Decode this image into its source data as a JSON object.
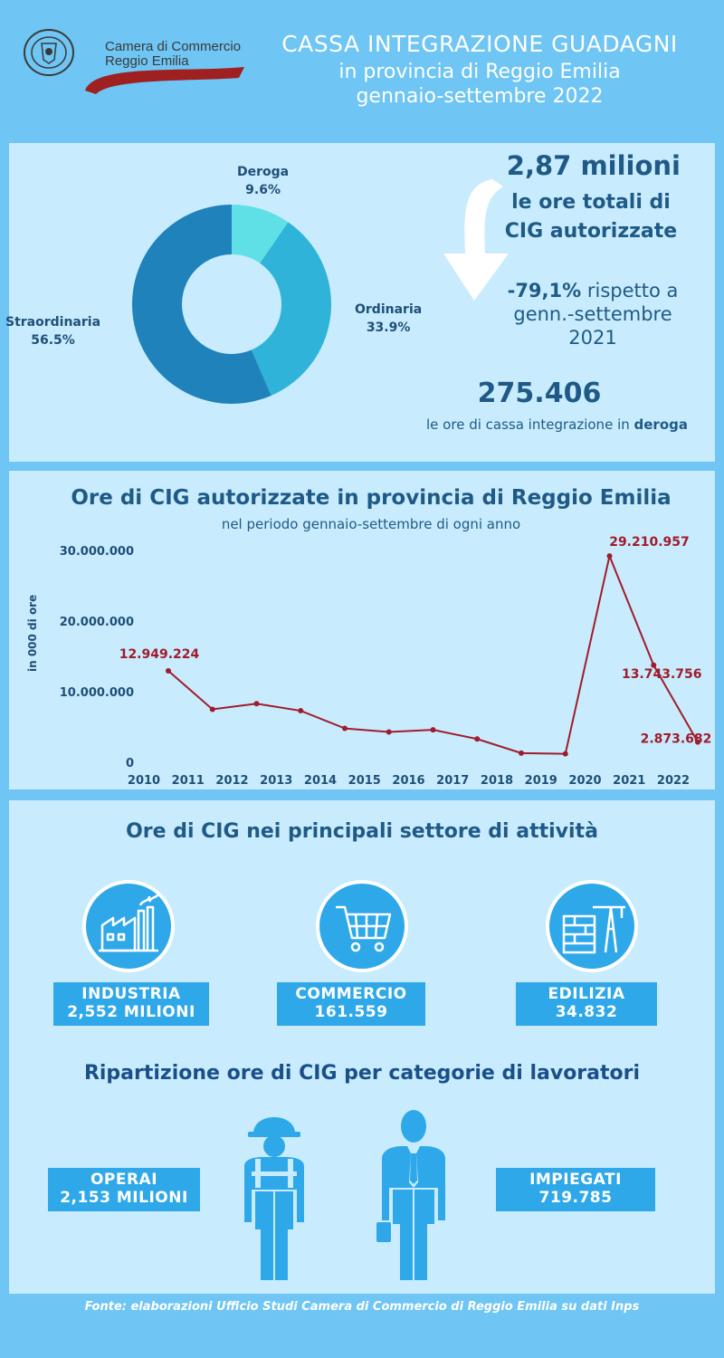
{
  "header": {
    "logo_text_line1": "Camera di Commercio",
    "logo_text_line2": "Reggio Emilia",
    "title_line1": "CASSA INTEGRAZIONE  GUADAGNI",
    "title_line2": "in provincia di Reggio Emilia",
    "title_line3": "gennaio-settembre 2022"
  },
  "summary": {
    "total_value": "2,87 milioni",
    "total_caption_line1": "le ore totali di",
    "total_caption_line2": "CIG autorizzate",
    "variation_value": "-79,1%",
    "variation_text_1": " rispetto a",
    "variation_text_2": "genn.-settembre",
    "variation_text_3": "2021",
    "deroga_value": "275.406",
    "deroga_caption": "le ore di cassa integrazione in ",
    "deroga_caption_bold": "deroga"
  },
  "donut_labels": {
    "deroga_name": "Deroga",
    "deroga_pct": "9.6%",
    "ordinaria_name": "Ordinaria",
    "ordinaria_pct": "33.9%",
    "straordinaria_name": "Straordinaria",
    "straordinaria_pct": "56.5%"
  },
  "line_chart_text": {
    "title": "Ore di CIG autorizzate in provincia di Reggio Emilia",
    "subtitle": "nel periodo gennaio-settembre di ogni anno",
    "ylabel": "in 000 di ore"
  },
  "chart_data": [
    {
      "type": "pie",
      "title": "",
      "categories": [
        "Deroga",
        "Ordinaria",
        "Straordinaria"
      ],
      "values": [
        9.6,
        33.9,
        56.5
      ],
      "colors": [
        "#5fe0e6",
        "#2fb3d9",
        "#1f82bb"
      ]
    },
    {
      "type": "line",
      "title": "Ore di CIG autorizzate in provincia di Reggio Emilia",
      "subtitle": "nel periodo gennaio-settembre di ogni anno",
      "xlabel": "",
      "ylabel": "in 000 di ore",
      "x": [
        "2010",
        "2011",
        "2012",
        "2013",
        "2014",
        "2015",
        "2016",
        "2017",
        "2018",
        "2019",
        "2020",
        "2021",
        "2022"
      ],
      "series": [
        {
          "values": [
            12949224,
            7500000,
            8300000,
            7300000,
            4800000,
            4300000,
            4600000,
            3300000,
            1300000,
            1200000,
            29210957,
            13743756,
            2873682
          ]
        }
      ],
      "data_labels": [
        {
          "index": 0,
          "text": "12.949.224"
        },
        {
          "index": 10,
          "text": "29.210.957"
        },
        {
          "index": 11,
          "text": "13.743.756"
        },
        {
          "index": 12,
          "text": "2.873.682"
        }
      ],
      "yticks": [
        "0",
        "10.000.000",
        "20.000.000",
        "30.000.000"
      ],
      "ylim": [
        0,
        30000000
      ],
      "grid": false,
      "line_color": "#a01c2c"
    }
  ],
  "sectors": {
    "title": "Ore di CIG nei principali settore di attività",
    "items": [
      {
        "name": "INDUSTRIA",
        "value": "2,552 MILIONI"
      },
      {
        "name": "COMMERCIO",
        "value": "161.559"
      },
      {
        "name": "EDILIZIA",
        "value": "34.832"
      }
    ]
  },
  "workers": {
    "title": "Ripartizione ore di CIG per categorie di lavoratori",
    "operai_name": "OPERAI",
    "operai_value": "2,153 MILIONI",
    "impiegati_name": "IMPIEGATI",
    "impiegati_value": "719.785"
  },
  "footer": "Fonte: elaborazioni Ufficio Studi Camera di Commercio di Reggio Emilia su dati Inps"
}
